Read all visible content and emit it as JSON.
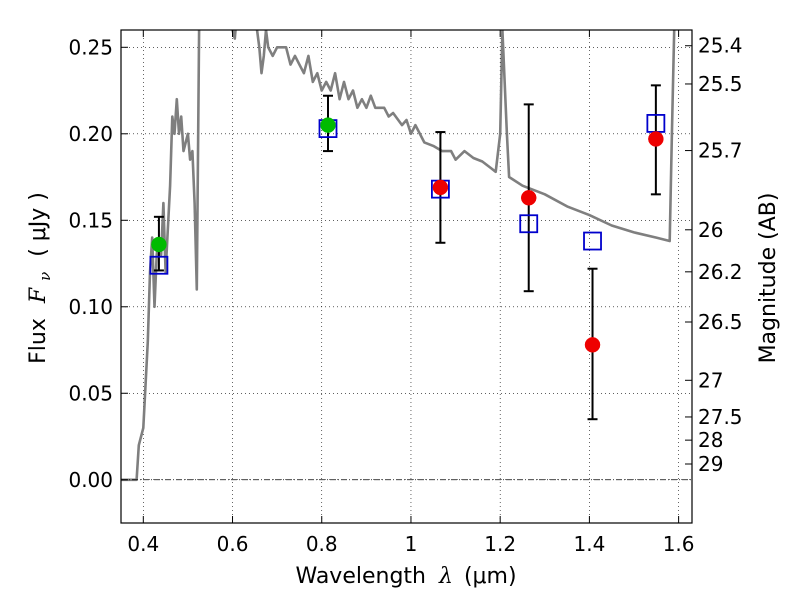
{
  "chart_data": {
    "type": "scatter",
    "xlabel_text": "Wavelength",
    "xlabel_symbol": "λ",
    "xlabel_unit": "(μm)",
    "ylabel_left_text": "Flux",
    "ylabel_left_symbol": "F",
    "ylabel_left_subscript": "ν",
    "ylabel_left_unit": "( μJy )",
    "ylabel_right": "Magnitude (AB)",
    "xlim": [
      0.35,
      1.63
    ],
    "ylim": [
      -0.025,
      0.26
    ],
    "grid": true,
    "x_ticks": [
      {
        "value": 0.4,
        "label": "0.4"
      },
      {
        "value": 0.6,
        "label": "0.6"
      },
      {
        "value": 0.8,
        "label": "0.8"
      },
      {
        "value": 1.0,
        "label": "1"
      },
      {
        "value": 1.2,
        "label": "1.2"
      },
      {
        "value": 1.4,
        "label": "1.4"
      },
      {
        "value": 1.6,
        "label": "1.6"
      }
    ],
    "y_ticks": [
      {
        "value": 0.0,
        "label": "0.00"
      },
      {
        "value": 0.05,
        "label": "0.05"
      },
      {
        "value": 0.1,
        "label": "0.10"
      },
      {
        "value": 0.15,
        "label": "0.15"
      },
      {
        "value": 0.2,
        "label": "0.20"
      },
      {
        "value": 0.25,
        "label": "0.25"
      }
    ],
    "right_ticks": [
      {
        "label": "25.4",
        "flux": 0.2509
      },
      {
        "label": "25.5",
        "flux": 0.2288
      },
      {
        "label": "25.7",
        "flux": 0.1903
      },
      {
        "label": "26",
        "flux": 0.1445
      },
      {
        "label": "26.2",
        "flux": 0.1202
      },
      {
        "label": "26.5",
        "flux": 0.0912
      },
      {
        "label": "27",
        "flux": 0.0575
      },
      {
        "label": "27.5",
        "flux": 0.0363
      },
      {
        "label": "28",
        "flux": 0.0229
      },
      {
        "label": "29",
        "flux": 0.0091
      }
    ],
    "series": [
      {
        "kind": "model_spectrum",
        "color": "#7f7f7f",
        "points": [
          [
            0.35,
            0.0
          ],
          [
            0.385,
            0.0
          ],
          [
            0.39,
            0.02
          ],
          [
            0.4,
            0.03
          ],
          [
            0.41,
            0.08
          ],
          [
            0.415,
            0.12
          ],
          [
            0.42,
            0.14
          ],
          [
            0.425,
            0.1
          ],
          [
            0.43,
            0.13
          ],
          [
            0.435,
            0.14
          ],
          [
            0.44,
            0.13
          ],
          [
            0.445,
            0.16
          ],
          [
            0.45,
            0.12
          ],
          [
            0.46,
            0.17
          ],
          [
            0.465,
            0.21
          ],
          [
            0.47,
            0.2
          ],
          [
            0.475,
            0.22
          ],
          [
            0.48,
            0.2
          ],
          [
            0.485,
            0.21
          ],
          [
            0.49,
            0.19
          ],
          [
            0.5,
            0.2
          ],
          [
            0.505,
            0.185
          ],
          [
            0.51,
            0.19
          ],
          [
            0.515,
            0.16
          ],
          [
            0.52,
            0.11
          ],
          [
            0.525,
            0.26
          ],
          [
            0.54,
            0.27
          ],
          [
            0.58,
            0.27
          ],
          [
            0.6,
            0.26
          ],
          [
            0.605,
            0.255
          ],
          [
            0.61,
            0.27
          ],
          [
            0.65,
            0.27
          ],
          [
            0.66,
            0.25
          ],
          [
            0.665,
            0.235
          ],
          [
            0.67,
            0.245
          ],
          [
            0.675,
            0.26
          ],
          [
            0.68,
            0.25
          ],
          [
            0.69,
            0.245
          ],
          [
            0.7,
            0.25
          ],
          [
            0.72,
            0.25
          ],
          [
            0.73,
            0.24
          ],
          [
            0.74,
            0.245
          ],
          [
            0.75,
            0.24
          ],
          [
            0.76,
            0.235
          ],
          [
            0.77,
            0.245
          ],
          [
            0.78,
            0.23
          ],
          [
            0.79,
            0.235
          ],
          [
            0.8,
            0.225
          ],
          [
            0.81,
            0.23
          ],
          [
            0.82,
            0.225
          ],
          [
            0.83,
            0.235
          ],
          [
            0.84,
            0.22
          ],
          [
            0.85,
            0.23
          ],
          [
            0.86,
            0.22
          ],
          [
            0.87,
            0.225
          ],
          [
            0.88,
            0.215
          ],
          [
            0.89,
            0.22
          ],
          [
            0.9,
            0.215
          ],
          [
            0.91,
            0.222
          ],
          [
            0.92,
            0.215
          ],
          [
            0.94,
            0.215
          ],
          [
            0.95,
            0.21
          ],
          [
            0.96,
            0.212
          ],
          [
            0.98,
            0.205
          ],
          [
            0.99,
            0.208
          ],
          [
            1.0,
            0.2
          ],
          [
            1.01,
            0.205
          ],
          [
            1.03,
            0.195
          ],
          [
            1.05,
            0.193
          ],
          [
            1.07,
            0.19
          ],
          [
            1.09,
            0.19
          ],
          [
            1.1,
            0.185
          ],
          [
            1.12,
            0.19
          ],
          [
            1.14,
            0.186
          ],
          [
            1.16,
            0.184
          ],
          [
            1.18,
            0.18
          ],
          [
            1.19,
            0.178
          ],
          [
            1.2,
            0.2
          ],
          [
            1.205,
            0.26
          ],
          [
            1.215,
            0.2
          ],
          [
            1.22,
            0.175
          ],
          [
            1.25,
            0.17
          ],
          [
            1.3,
            0.165
          ],
          [
            1.35,
            0.158
          ],
          [
            1.4,
            0.153
          ],
          [
            1.45,
            0.147
          ],
          [
            1.5,
            0.143
          ],
          [
            1.55,
            0.14
          ],
          [
            1.58,
            0.138
          ],
          [
            1.585,
            0.2
          ],
          [
            1.59,
            0.26
          ]
        ]
      },
      {
        "kind": "model_fluxes",
        "name": "",
        "marker": "open_square",
        "color": "#0000cc",
        "x": [
          0.435,
          0.814,
          1.066,
          1.264,
          1.407,
          1.549
        ],
        "y": [
          0.124,
          0.203,
          0.168,
          0.148,
          0.138,
          0.206
        ]
      },
      {
        "kind": "detections",
        "marker": "filled_circle",
        "color": "#00bb00",
        "x": [
          0.435,
          0.814
        ],
        "y": [
          0.136,
          0.205
        ],
        "yerr_low": [
          0.121,
          0.19
        ],
        "yerr_high": [
          0.152,
          0.222
        ]
      },
      {
        "kind": "detections",
        "marker": "filled_circle",
        "color": "#ee0000",
        "x": [
          1.066,
          1.264,
          1.407,
          1.549
        ],
        "y": [
          0.169,
          0.163,
          0.078,
          0.197
        ],
        "yerr_low": [
          0.137,
          0.109,
          0.035,
          0.165
        ],
        "yerr_high": [
          0.201,
          0.217,
          0.122,
          0.228
        ]
      }
    ]
  }
}
